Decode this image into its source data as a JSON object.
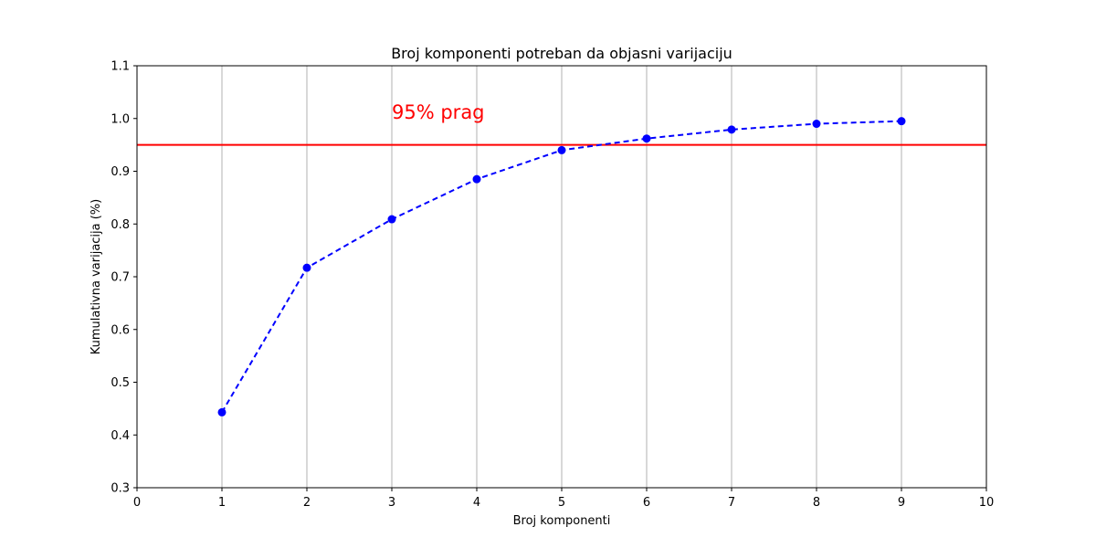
{
  "chart_data": {
    "type": "line",
    "title": "Broj komponenti potreban da objasni varijaciju",
    "xlabel": "Broj komponenti",
    "ylabel": "Kumulativna varijacija (%)",
    "xlim": [
      0,
      10
    ],
    "ylim": [
      0.3,
      1.1
    ],
    "xticks": [
      0,
      1,
      2,
      3,
      4,
      5,
      6,
      7,
      8,
      9,
      10
    ],
    "xtick_labels": [
      "0",
      "1",
      "2",
      "3",
      "4",
      "5",
      "6",
      "7",
      "8",
      "9",
      "10"
    ],
    "yticks": [
      0.3,
      0.4,
      0.5,
      0.6,
      0.7,
      0.8,
      0.9,
      1.0,
      1.1
    ],
    "ytick_labels": [
      "0.3",
      "0.4",
      "0.5",
      "0.6",
      "0.7",
      "0.8",
      "0.9",
      "1.0",
      "1.1"
    ],
    "grid": "vertical",
    "series": [
      {
        "x": [
          1,
          2,
          3,
          4,
          5,
          6,
          7,
          8,
          9
        ],
        "y": [
          0.443,
          0.717,
          0.809,
          0.885,
          0.94,
          0.962,
          0.979,
          0.99,
          0.995
        ],
        "color": "#0000ff",
        "linestyle": "dashed",
        "marker": "circle"
      }
    ],
    "threshold": {
      "y": 0.95,
      "color": "#ff0000",
      "label": "95% prag",
      "label_x": 3.0,
      "label_y": 1.0
    }
  }
}
